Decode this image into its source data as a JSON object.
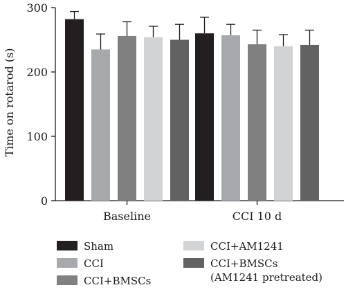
{
  "chart_data": {
    "type": "bar",
    "categories": [
      "Baseline",
      "CCI 10 d"
    ],
    "ylabel": "Time on rotarod (s)",
    "ylim": [
      0,
      300
    ],
    "yticks": [
      "0",
      "100",
      "200",
      "300"
    ],
    "grid": false,
    "legend_position": "bottom",
    "series": [
      {
        "name": "Sham",
        "color": "#231f20",
        "values": [
          282,
          260
        ],
        "errors": [
          12,
          25
        ]
      },
      {
        "name": "CCI",
        "color": "#a7a9ac",
        "values": [
          235,
          257
        ],
        "errors": [
          24,
          17
        ]
      },
      {
        "name": "CCI+BMSCs",
        "color": "#808080",
        "values": [
          256,
          243
        ],
        "errors": [
          22,
          22
        ]
      },
      {
        "name": "CCI+AM1241",
        "color": "#d1d3d4",
        "values": [
          254,
          240
        ],
        "errors": [
          17,
          18
        ]
      },
      {
        "name": "CCI+BMSCs\n(AM1241 pretreated)",
        "color": "#626262",
        "values": [
          250,
          242
        ],
        "errors": [
          24,
          23
        ]
      }
    ]
  }
}
